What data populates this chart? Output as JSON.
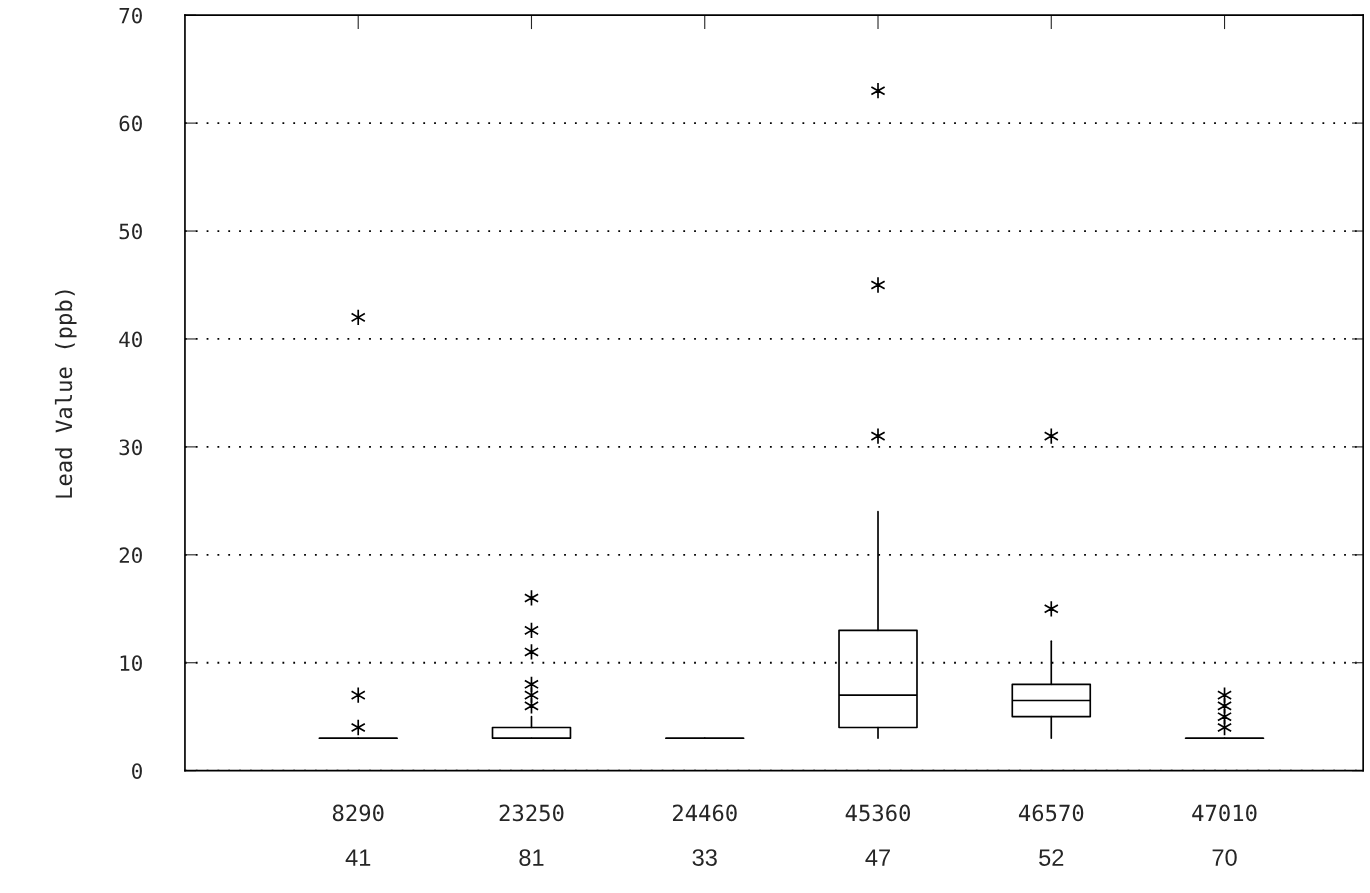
{
  "chart_data": {
    "type": "box",
    "ylabel": "Lead Value (ppb)",
    "categories": [
      "8290",
      "23250",
      "24460",
      "45360",
      "46570",
      "47010"
    ],
    "boxes": [
      {
        "low": 3,
        "q1": 3,
        "median": 3,
        "q3": 3,
        "high": 3,
        "outliers": [
          4,
          7,
          42
        ]
      },
      {
        "low": 3,
        "q1": 3,
        "median": 3,
        "q3": 4,
        "high": 5,
        "outliers": [
          6,
          7,
          8,
          11,
          13,
          16
        ]
      },
      {
        "low": 3,
        "q1": 3,
        "median": 3,
        "q3": 3,
        "high": 3
      },
      {
        "low": 3,
        "q1": 4,
        "median": 7,
        "q3": 13,
        "high": 24,
        "outliers": [
          31,
          45,
          63
        ]
      },
      {
        "low": 3,
        "q1": 5,
        "median": 6.5,
        "q3": 8,
        "high": 12,
        "outliers": [
          15,
          31
        ]
      },
      {
        "low": 3,
        "q1": 3,
        "median": 3,
        "q3": 3,
        "high": 3,
        "outliers": [
          4,
          5,
          6,
          7
        ]
      }
    ],
    "ylim": [
      0,
      70
    ],
    "yticks": [
      0,
      10,
      20,
      30,
      40,
      50,
      60,
      70
    ],
    "grid": "y",
    "annotations": [
      "41",
      "81",
      "33",
      "47",
      "52",
      "70"
    ]
  }
}
